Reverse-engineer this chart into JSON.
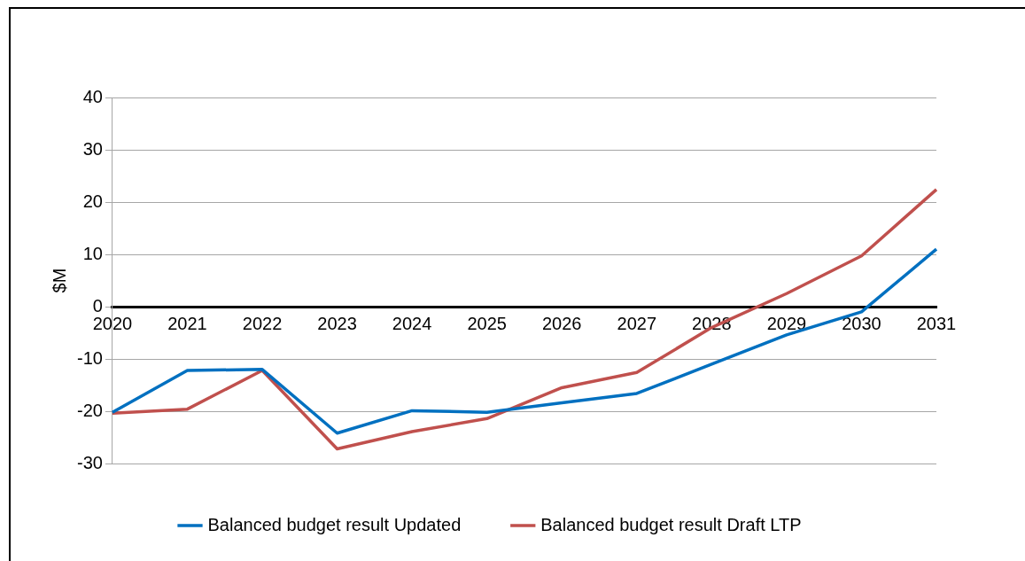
{
  "chart_data": {
    "type": "line",
    "ylabel": "$M",
    "categories": [
      "2020",
      "2021",
      "2022",
      "2023",
      "2024",
      "2025",
      "2026",
      "2027",
      "2028",
      "2029",
      "2030",
      "2031"
    ],
    "series": [
      {
        "name": "Balanced budget result Updated",
        "color": "#0070c0",
        "values": [
          -20.2,
          -12.2,
          -12,
          -24.2,
          -19.9,
          -20.2,
          -18.4,
          -16.6,
          -11,
          -5.4,
          -1,
          11
        ]
      },
      {
        "name": "Balanced budget result Draft LTP",
        "color": "#c0504d",
        "values": [
          -20.4,
          -19.6,
          -12.2,
          -27.2,
          -23.9,
          -21.4,
          -15.5,
          -12.6,
          -4,
          2.5,
          9.7,
          22.4
        ]
      }
    ],
    "ylim": [
      -30,
      40
    ],
    "yticks": [
      -30,
      -20,
      -10,
      0,
      10,
      20,
      30,
      40
    ],
    "grid": "y",
    "legend": "bottom",
    "marker": "none",
    "line_style": "solid"
  }
}
